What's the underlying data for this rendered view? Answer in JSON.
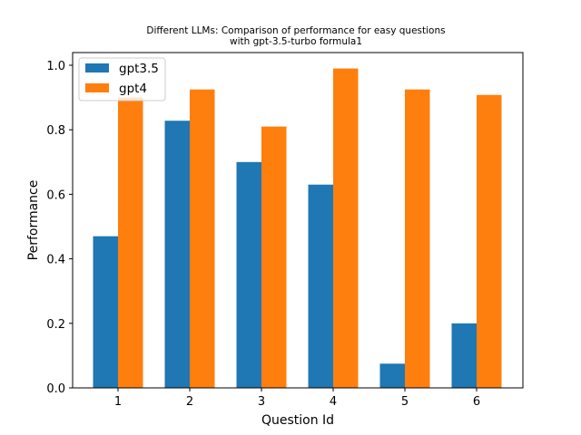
{
  "chart_data": {
    "type": "bar",
    "title_line1": "Different LLMs: Comparison of performance for easy questions",
    "title_line2": "with gpt-3.5-turbo formula1",
    "xlabel": "Question Id",
    "ylabel": "Performance",
    "categories": [
      "1",
      "2",
      "3",
      "4",
      "5",
      "6"
    ],
    "series": [
      {
        "name": "gpt3.5",
        "color": "#1f77b4",
        "values": [
          0.47,
          0.828,
          0.7,
          0.63,
          0.075,
          0.2
        ]
      },
      {
        "name": "gpt4",
        "color": "#ff7f0e",
        "values": [
          0.9,
          0.925,
          0.81,
          0.99,
          0.925,
          0.908
        ]
      }
    ],
    "ylim": [
      0,
      1.0
    ],
    "yticks": [
      "0.0",
      "0.2",
      "0.4",
      "0.6",
      "0.8",
      "1.0"
    ],
    "ytick_values": [
      0,
      0.2,
      0.4,
      0.6,
      0.8,
      1.0
    ],
    "grid": false,
    "legend_position": "top-left"
  }
}
